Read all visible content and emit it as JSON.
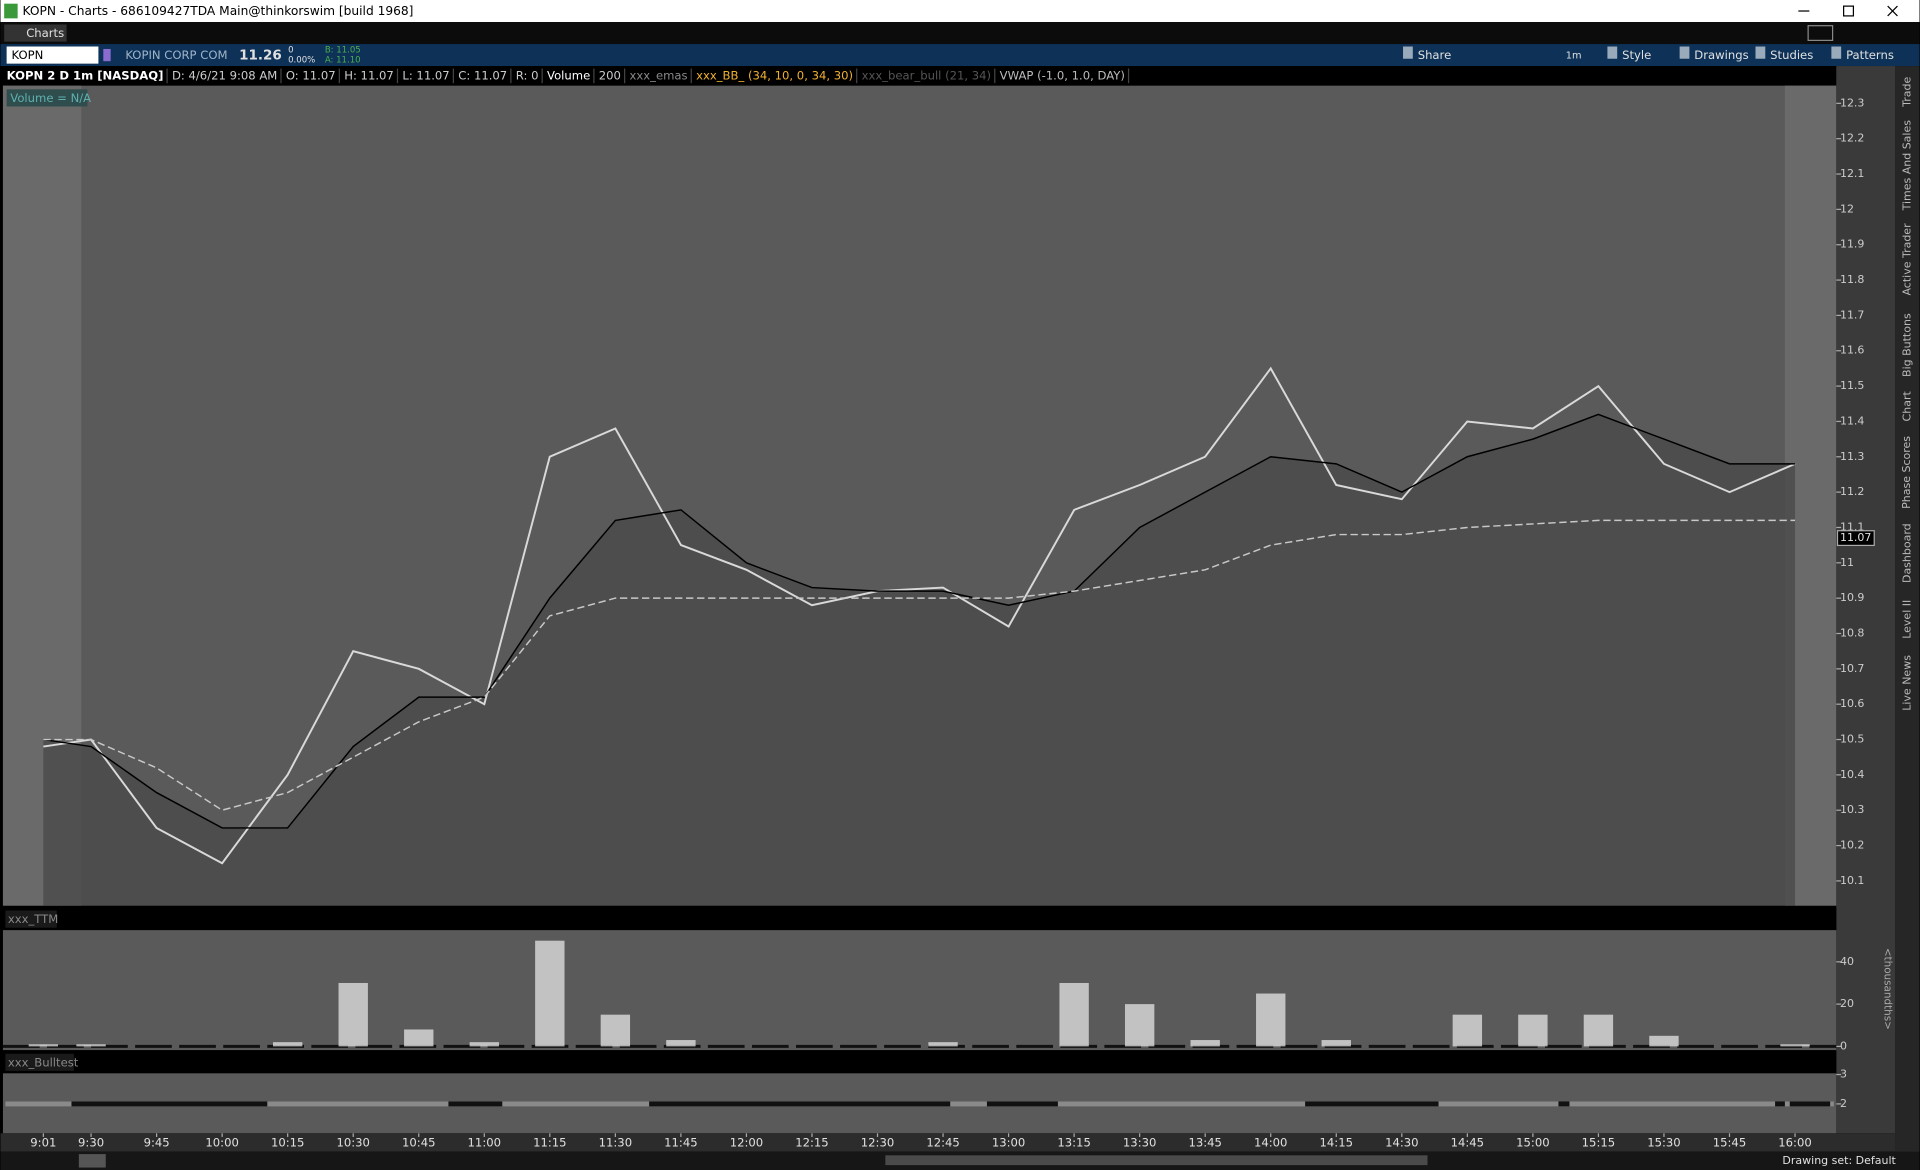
{
  "window": {
    "title": "KOPN - Charts - 686109427TDA Main@thinkorswim [build 1968]",
    "tab": "Charts"
  },
  "toolbar": {
    "symbol": "KOPN",
    "company": "KOPIN CORP COM",
    "last": "11.26",
    "change": "0",
    "change_pct": "0.00%",
    "bid": "B: 11.05",
    "ask": "A: 11.10",
    "aggregation": "1m",
    "buttons": [
      "Share",
      "Style",
      "Drawings",
      "Studies",
      "Patterns"
    ]
  },
  "info_bar": [
    "KOPN 2 D 1m [NASDAQ]",
    "D: 4/6/21 9:08 AM",
    "O: 11.07",
    "H: 11.07",
    "L: 11.07",
    "C: 11.07",
    "R: 0",
    "Volume",
    "200",
    "xxx_emas",
    "xxx_BB_ (34, 10, 0, 34, 30)",
    "xxx_bear_bull (21, 34)",
    "VWAP (-1.0, 1.0, DAY)"
  ],
  "volume_label": "Volume = N/A",
  "side_tabs": [
    "Trade",
    "Times And Sales",
    "Active Trader",
    "Big Buttons",
    "Chart",
    "Phase Scores",
    "Dashboard",
    "Level II",
    "Live News"
  ],
  "drawing_set": "Drawing set: Default",
  "chart_data": [
    {
      "type": "line",
      "categories": [
        "9:01",
        "9:30",
        "9:45",
        "10:00",
        "10:15",
        "10:30",
        "10:45",
        "11:00",
        "11:15",
        "11:30",
        "11:45",
        "12:00",
        "12:15",
        "12:30",
        "12:45",
        "13:00",
        "13:15",
        "13:30",
        "13:45",
        "14:00",
        "14:15",
        "14:30",
        "14:45",
        "15:00",
        "15:15",
        "15:30",
        "15:45",
        "16:00"
      ],
      "series": [
        {
          "color": "#d9d9d9",
          "values": [
            10.48,
            10.5,
            10.25,
            10.15,
            10.4,
            10.75,
            10.7,
            10.6,
            11.3,
            11.38,
            11.05,
            10.98,
            10.88,
            10.92,
            10.93,
            10.82,
            11.15,
            11.22,
            11.3,
            11.55,
            11.22,
            11.18,
            11.4,
            11.38,
            11.5,
            11.28,
            11.2,
            11.28
          ]
        },
        {
          "color": "#000000",
          "values": [
            10.5,
            10.48,
            10.35,
            10.25,
            10.25,
            10.48,
            10.62,
            10.62,
            10.9,
            11.12,
            11.15,
            11.0,
            10.93,
            10.92,
            10.92,
            10.88,
            10.92,
            11.1,
            11.2,
            11.3,
            11.28,
            11.2,
            11.3,
            11.35,
            11.42,
            11.35,
            11.28,
            11.28
          ]
        },
        {
          "color": "#c8c8c8",
          "dashed": true,
          "values": [
            10.5,
            10.5,
            10.42,
            10.3,
            10.35,
            10.45,
            10.55,
            10.62,
            10.85,
            10.9,
            10.9,
            10.9,
            10.9,
            10.9,
            10.9,
            10.9,
            10.92,
            10.95,
            10.98,
            11.05,
            11.08,
            11.08,
            11.1,
            11.11,
            11.12,
            11.12,
            11.12,
            11.12
          ]
        }
      ],
      "price_label": 11.07,
      "ylim": [
        10.03,
        12.35
      ],
      "yticks": [
        10.1,
        10.2,
        10.3,
        10.4,
        10.5,
        10.6,
        10.7,
        10.8,
        10.9,
        {
          "value": 11,
          "label": "11"
        },
        11.1,
        11.2,
        11.3,
        11.4,
        11.5,
        11.6,
        11.7,
        11.8,
        11.9,
        {
          "value": 12,
          "label": "12"
        },
        12.1,
        12.2,
        12.3
      ]
    },
    {
      "type": "bar",
      "title": "xxx_TTM",
      "ylabel": "<thousandths>",
      "color": "#e6e6e6",
      "values": [
        1,
        1,
        0,
        0,
        2,
        30,
        8,
        2,
        50,
        15,
        3,
        0,
        0,
        0,
        2,
        0,
        30,
        20,
        3,
        25,
        3,
        0,
        15,
        15,
        15,
        5,
        0,
        1
      ],
      "ylim": [
        0,
        55
      ],
      "yticks": [
        0,
        20,
        40
      ]
    },
    {
      "type": "level",
      "title": "xxx_Bulltest",
      "ylim": [
        1,
        3
      ],
      "yticks": [
        2,
        3
      ]
    }
  ]
}
